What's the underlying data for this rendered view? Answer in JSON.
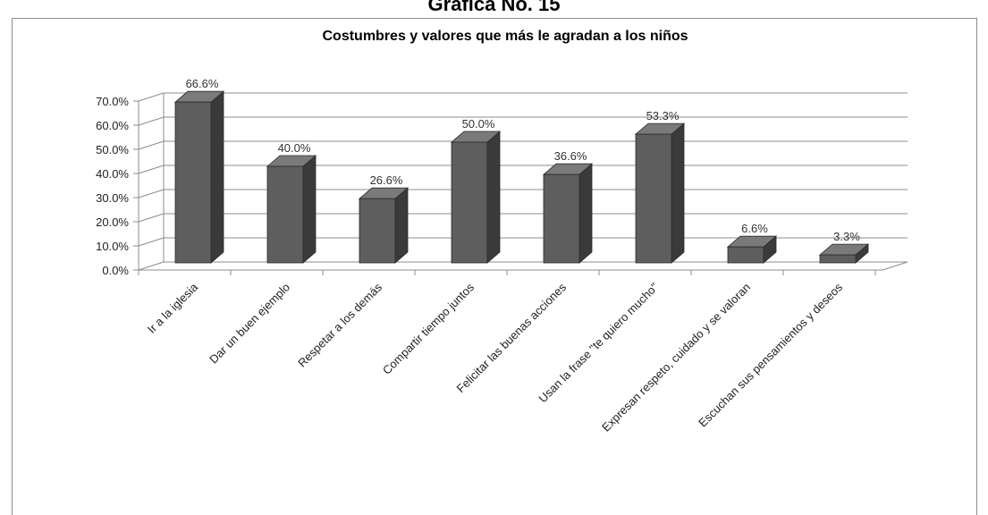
{
  "header": {
    "title": "Gráfica No. 15"
  },
  "chart_data": {
    "type": "bar",
    "title": "Costumbres y valores que más le agradan a los niños",
    "xlabel": "",
    "ylabel": "",
    "categories": [
      "Ir a la iglesia",
      "Dar un buen ejemplo",
      "Respetar a los demás",
      "Compartir tiempo juntos",
      "Felicitar las buenas acciones",
      "Usan la frase \"te quiero mucho\"",
      "Expresan respeto, cuidado y se valoran",
      "Escuchan sus pensamientos y deseos"
    ],
    "values": [
      66.6,
      40.0,
      26.6,
      50.0,
      36.6,
      53.3,
      6.6,
      3.3
    ],
    "value_labels": [
      "66.6%",
      "40.0%",
      "26.6%",
      "50.0%",
      "36.6%",
      "53.3%",
      "6.6%",
      "3.3%"
    ],
    "ylim": [
      0,
      70
    ],
    "yticks": [
      0,
      10,
      20,
      30,
      40,
      50,
      60,
      70
    ],
    "ytick_labels": [
      "0.0%",
      "10.0%",
      "20.0%",
      "30.0%",
      "40.0%",
      "50.0%",
      "60.0%",
      "70.0%"
    ],
    "grid": true,
    "legend": "none",
    "style": "3d-column",
    "colors": {
      "bar_front": "#5e5e5e",
      "bar_side": "#3a3a3a",
      "bar_top": "#7a7a7a",
      "bar_outline": "#2a2a2a",
      "grid": "#8c8c8c"
    }
  }
}
